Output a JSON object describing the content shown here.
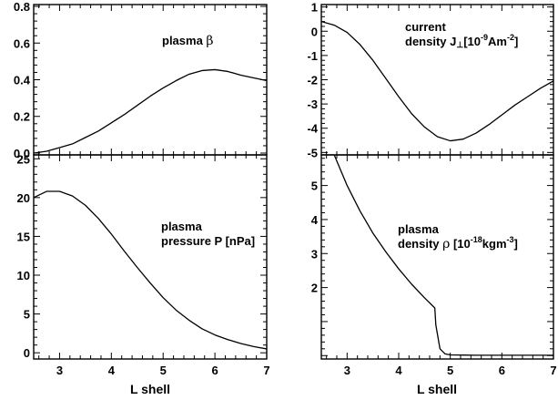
{
  "chart_data": [
    {
      "type": "line",
      "id": "beta",
      "xlim": [
        2.5,
        7
      ],
      "ylim": [
        -0.01,
        0.81
      ],
      "xticks": [
        "3",
        "4",
        "5",
        "6",
        "7"
      ],
      "xtick_values": [
        3,
        4,
        5,
        6,
        7
      ],
      "yticks": [
        "0.0",
        "0.2",
        "0.4",
        "0.6",
        "0.8"
      ],
      "ytick_values": [
        0.0,
        0.2,
        0.4,
        0.6,
        0.8
      ],
      "annotation": {
        "text": "plasma ",
        "symbol": "β"
      },
      "xlabel": "",
      "x": [
        2.5,
        2.75,
        3.0,
        3.25,
        3.5,
        3.75,
        4.0,
        4.25,
        4.5,
        4.75,
        5.0,
        5.25,
        5.5,
        5.75,
        6.0,
        6.25,
        6.5,
        6.75,
        7.0
      ],
      "y": [
        0.0,
        0.01,
        0.03,
        0.05,
        0.085,
        0.12,
        0.165,
        0.21,
        0.26,
        0.31,
        0.355,
        0.395,
        0.43,
        0.45,
        0.455,
        0.445,
        0.425,
        0.41,
        0.395
      ]
    },
    {
      "type": "line",
      "id": "current",
      "xlim": [
        2.5,
        7
      ],
      "ylim": [
        -5.1,
        1.1
      ],
      "xticks": [
        "3",
        "4",
        "5",
        "6",
        "7"
      ],
      "xtick_values": [
        3,
        4,
        5,
        6,
        7
      ],
      "yticks": [
        "1",
        "0",
        "-1",
        "-2",
        "-3",
        "-4",
        "-5"
      ],
      "ytick_values": [
        1,
        0,
        -1,
        -2,
        -3,
        -4,
        -5
      ],
      "annotation": {
        "line1": "current",
        "line2_a": "density J",
        "line2_sub": "⊥",
        "line2_b": "[10",
        "line2_sup": "-9",
        "line2_c": "Am",
        "line2_sup2": "-2",
        "line2_d": "]"
      },
      "xlabel": "",
      "x": [
        2.5,
        2.75,
        3.0,
        3.25,
        3.5,
        3.75,
        4.0,
        4.25,
        4.5,
        4.75,
        5.0,
        5.25,
        5.5,
        5.75,
        6.0,
        6.25,
        6.5,
        6.75,
        7.0
      ],
      "y": [
        0.4,
        0.25,
        -0.05,
        -0.55,
        -1.2,
        -1.95,
        -2.7,
        -3.4,
        -3.95,
        -4.35,
        -4.52,
        -4.45,
        -4.2,
        -3.85,
        -3.45,
        -3.05,
        -2.7,
        -2.35,
        -2.05
      ]
    },
    {
      "type": "line",
      "id": "pressure",
      "xlim": [
        2.5,
        7
      ],
      "ylim": [
        -0.8,
        25.5
      ],
      "xticks": [
        "3",
        "4",
        "5",
        "6",
        "7"
      ],
      "xtick_values": [
        3,
        4,
        5,
        6,
        7
      ],
      "yticks": [
        "0",
        "5",
        "10",
        "15",
        "20",
        "25"
      ],
      "ytick_values": [
        0,
        5,
        10,
        15,
        20,
        25
      ],
      "annotation": {
        "line1": "plasma",
        "line2": "pressure P [nPa]"
      },
      "xlabel": "L shell",
      "x": [
        2.5,
        2.75,
        3.0,
        3.25,
        3.5,
        3.75,
        4.0,
        4.25,
        4.5,
        4.75,
        5.0,
        5.25,
        5.5,
        5.75,
        6.0,
        6.25,
        6.5,
        6.75,
        7.0
      ],
      "y": [
        20.0,
        20.8,
        20.8,
        20.2,
        19.0,
        17.3,
        15.3,
        13.1,
        11.0,
        9.0,
        7.1,
        5.5,
        4.2,
        3.1,
        2.3,
        1.7,
        1.2,
        0.8,
        0.5
      ]
    },
    {
      "type": "line",
      "id": "density",
      "xlim": [
        2.5,
        7
      ],
      "ylim": [
        -0.1,
        5.9
      ],
      "xticks": [
        "3",
        "4",
        "5",
        "6",
        "7"
      ],
      "xtick_values": [
        3,
        4,
        5,
        6,
        7
      ],
      "yticks": [
        "2",
        "3",
        "4",
        "5"
      ],
      "ytick_values": [
        2,
        3,
        4,
        5
      ],
      "annotation": {
        "line1": "plasma",
        "line2_a": "density ",
        "line2_sym": "ρ",
        "line2_b": " [10",
        "line2_sup": "-18",
        "line2_c": "kgm",
        "line2_sup2": "-3",
        "line2_d": "]"
      },
      "xlabel": "L shell",
      "x": [
        2.75,
        3.0,
        3.25,
        3.5,
        3.75,
        4.0,
        4.25,
        4.5,
        4.7,
        4.72,
        4.8,
        4.9,
        5.0,
        5.5,
        6.0,
        6.5,
        7.0
      ],
      "y": [
        5.9,
        5.0,
        4.25,
        3.6,
        3.05,
        2.55,
        2.1,
        1.7,
        1.4,
        0.9,
        0.2,
        0.05,
        0.02,
        0.01,
        0.01,
        0.01,
        0.01
      ]
    }
  ]
}
